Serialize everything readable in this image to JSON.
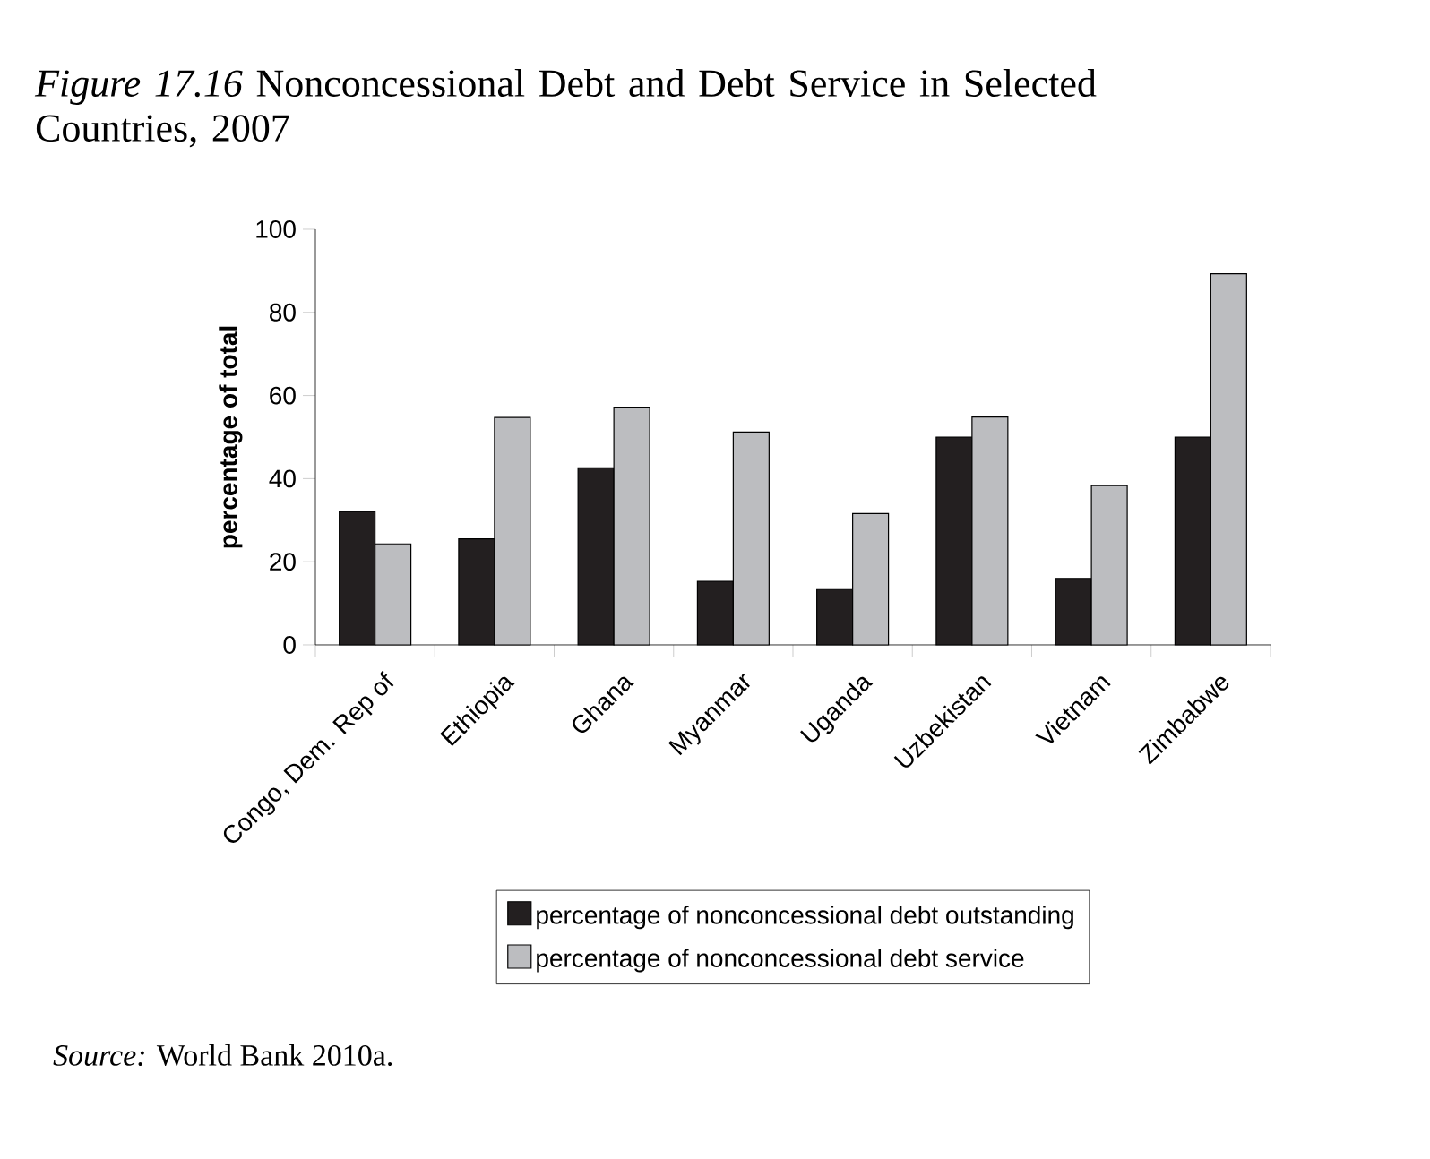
{
  "chart_data": {
    "type": "bar",
    "title": "*Figure 17.16* Nonconcessional Debt and Debt Service in Selected Countries, 2007",
    "ylabel": "percentage of total",
    "categories": [
      "Congo, Dem. Rep of",
      "Ethiopia",
      "Ghana",
      "Myanmar",
      "Uganda",
      "Uzbekistan",
      "Vietnam",
      "Zimbabwe"
    ],
    "series": [
      {
        "name": "percentage of nonconcessional debt outstanding",
        "color": "#231f20",
        "values": [
          32.1,
          25.5,
          42.6,
          15.3,
          13.3,
          50,
          16,
          50
        ]
      },
      {
        "name": "percentage of nonconcessional debt service",
        "color": "#bcbdc0",
        "values": [
          24.3,
          54.7,
          57.2,
          51.2,
          31.6,
          54.8,
          38.3,
          89.3
        ]
      }
    ],
    "ylim": [
      0,
      100
    ],
    "yticks": [
      0,
      20,
      40,
      60,
      80,
      100
    ],
    "grid": false,
    "legend": "bottom",
    "annotations": [
      "*Source:* World Bank 2010a."
    ]
  }
}
